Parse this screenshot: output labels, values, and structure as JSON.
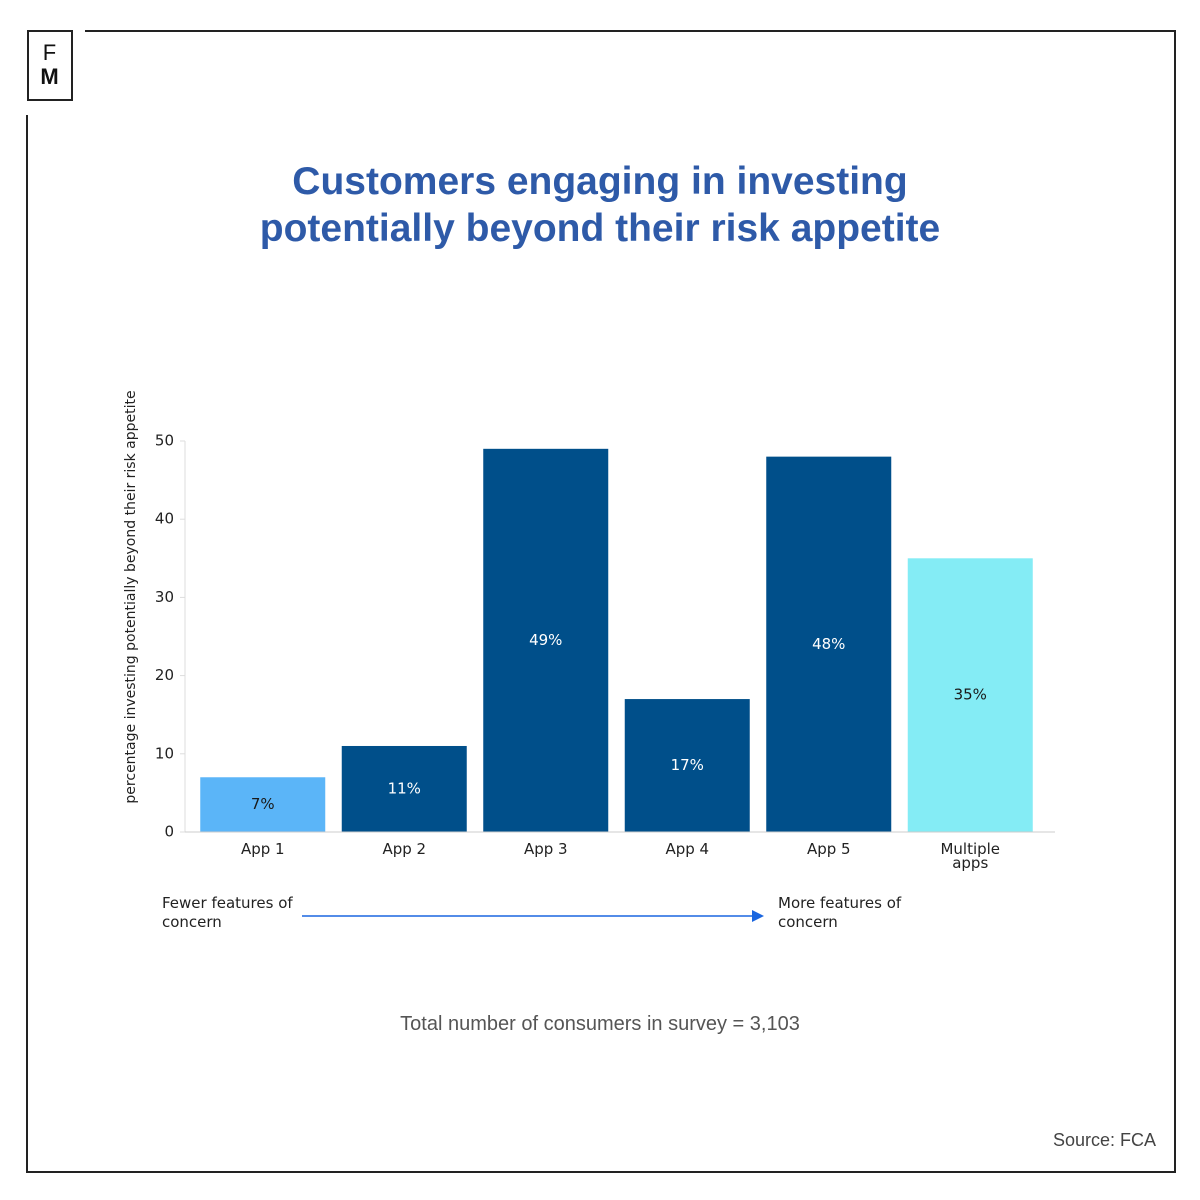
{
  "logo": [
    "F",
    "M"
  ],
  "chart_data": {
    "type": "bar",
    "title": "Customers engaging in investing potentially beyond their risk appetite",
    "y_label": "percentage investing potentially beyond their risk appetite",
    "categories": [
      "App 1",
      "App 2",
      "App 3",
      "App 4",
      "App 5",
      "Multiple apps"
    ],
    "values": [
      7,
      11,
      49,
      17,
      48,
      35
    ],
    "value_labels": [
      "7%",
      "11%",
      "49%",
      "17%",
      "48%",
      "35%"
    ],
    "colors": [
      "#5bb5f8",
      "#004f8a",
      "#004f8a",
      "#004f8a",
      "#004f8a",
      "#84ecf5"
    ],
    "ylim": [
      0,
      50
    ],
    "yticks": [
      0,
      10,
      20,
      30,
      40,
      50
    ],
    "annotations": [
      "Fewer features of concern",
      "More features of concern"
    ],
    "note": "Total number of consumers in survey = 3,103",
    "source": "Source: FCA"
  }
}
